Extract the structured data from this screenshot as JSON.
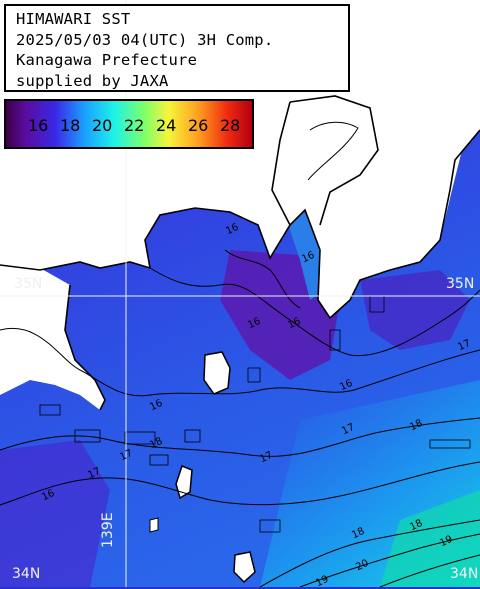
{
  "title": {
    "lines": [
      "HIMAWARI SST",
      "2025/05/03 04(UTC) 3H Comp.",
      "Kanagawa Prefecture",
      "supplied by JAXA"
    ]
  },
  "legend": {
    "ticks": [
      "16",
      "18",
      "20",
      "22",
      "24",
      "26",
      "28"
    ],
    "colors": [
      "#3c0045",
      "#3a28e6",
      "#1aa0ff",
      "#1ef2e8",
      "#7dff6a",
      "#f6f53a",
      "#ffa020",
      "#f02a10",
      "#b40010"
    ]
  },
  "axes": {
    "lat_labels": [
      "35N",
      "35N",
      "34N",
      "34N"
    ],
    "lon_label": "139E"
  },
  "isotherm_labels": [
    "16",
    "16",
    "16",
    "16",
    "16",
    "16",
    "16",
    "17",
    "17",
    "17",
    "17",
    "17",
    "18",
    "18",
    "18",
    "18",
    "19",
    "19",
    "20"
  ],
  "land_color": "#ffffff",
  "ocean_colors": {
    "cool": "#5a1ab0",
    "mid": "#2d3ee0",
    "warm": "#18b4f0"
  }
}
